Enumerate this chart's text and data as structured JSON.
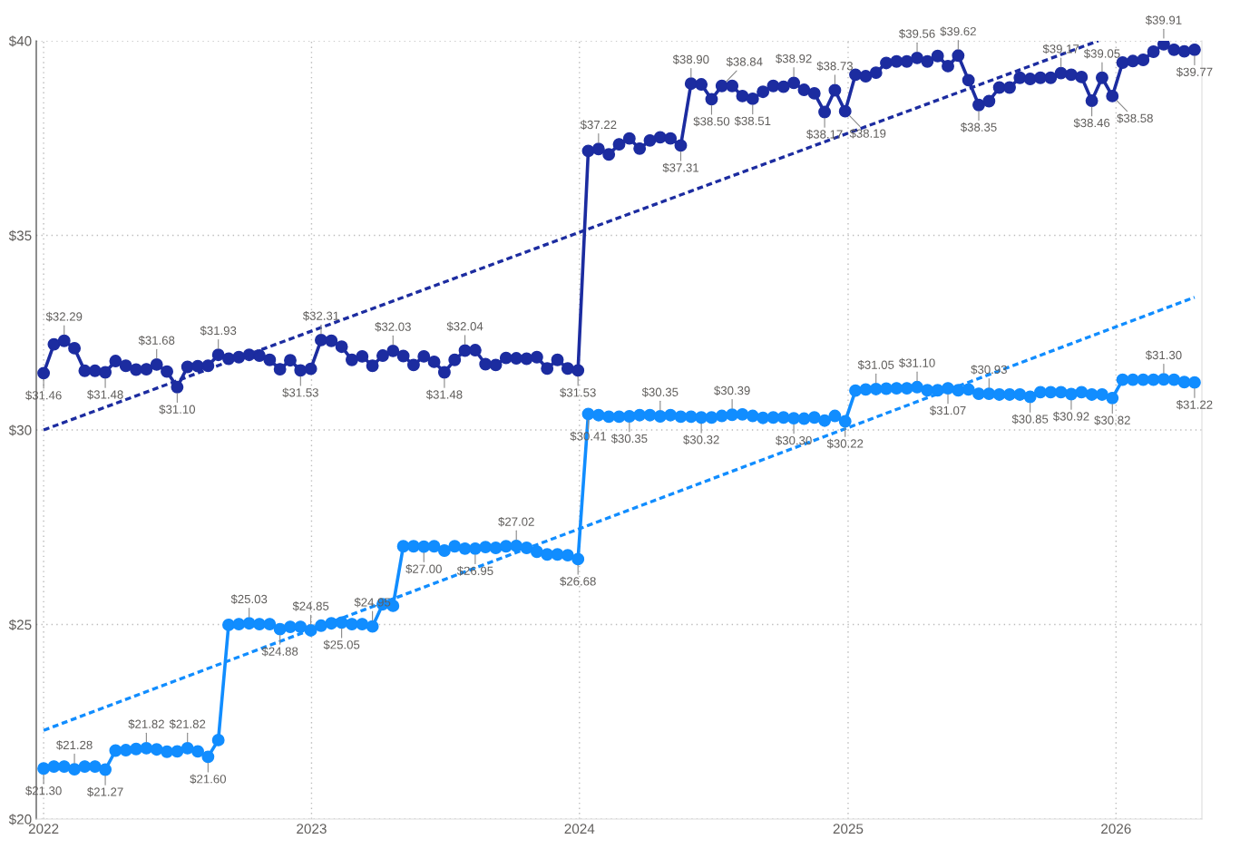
{
  "chart_data": {
    "type": "line",
    "x": [
      "2022-01-01",
      "2022-01-15",
      "2022-01-29",
      "2022-02-12",
      "2022-02-26",
      "2022-03-12",
      "2022-03-26",
      "2022-04-09",
      "2022-04-23",
      "2022-05-07",
      "2022-05-21",
      "2022-06-04",
      "2022-06-18",
      "2022-07-02",
      "2022-07-16",
      "2022-07-30",
      "2022-08-13",
      "2022-08-27",
      "2022-09-10",
      "2022-09-24",
      "2022-10-08",
      "2022-10-22",
      "2022-11-05",
      "2022-11-19",
      "2022-12-03",
      "2022-12-17",
      "2022-12-31",
      "2023-01-14",
      "2023-01-28",
      "2023-02-11",
      "2023-02-25",
      "2023-03-11",
      "2023-03-25",
      "2023-04-08",
      "2023-04-22",
      "2023-05-06",
      "2023-05-20",
      "2023-06-03",
      "2023-06-17",
      "2023-07-01",
      "2023-07-15",
      "2023-07-29",
      "2023-08-12",
      "2023-08-26",
      "2023-09-09",
      "2023-09-23",
      "2023-10-07",
      "2023-10-21",
      "2023-11-04",
      "2023-11-18",
      "2023-12-02",
      "2023-12-16",
      "2023-12-30",
      "2024-01-13",
      "2024-01-27",
      "2024-02-10",
      "2024-02-24",
      "2024-03-09",
      "2024-03-23",
      "2024-04-06",
      "2024-04-20",
      "2024-05-04",
      "2024-05-18",
      "2024-06-01",
      "2024-06-15",
      "2024-06-29",
      "2024-07-13",
      "2024-07-27",
      "2024-08-10",
      "2024-08-24",
      "2024-09-07",
      "2024-09-21",
      "2024-10-05",
      "2024-10-19",
      "2024-11-02",
      "2024-11-16",
      "2024-11-30",
      "2024-12-14",
      "2024-12-28",
      "2025-01-11",
      "2025-01-25",
      "2025-02-08",
      "2025-02-22",
      "2025-03-08",
      "2025-03-22",
      "2025-04-05",
      "2025-04-19",
      "2025-05-03",
      "2025-05-17",
      "2025-05-31",
      "2025-06-14",
      "2025-06-28",
      "2025-07-12",
      "2025-07-26",
      "2025-08-09",
      "2025-08-23",
      "2025-09-06",
      "2025-09-20",
      "2025-10-04",
      "2025-10-18",
      "2025-11-01",
      "2025-11-15",
      "2025-11-29",
      "2025-12-13",
      "2025-12-27",
      "2026-01-10",
      "2026-01-24",
      "2026-02-07",
      "2026-02-21",
      "2026-03-07",
      "2026-03-21",
      "2026-04-04",
      "2026-04-18"
    ],
    "series": [
      {
        "color": "#1c2ca0",
        "marker": "circle",
        "line_style": "solid",
        "values": [
          31.46,
          32.2,
          32.29,
          32.1,
          31.52,
          31.52,
          31.48,
          31.77,
          31.65,
          31.55,
          31.56,
          31.68,
          31.5,
          31.1,
          31.62,
          31.64,
          31.65,
          31.93,
          31.83,
          31.87,
          31.93,
          31.91,
          31.8,
          31.56,
          31.79,
          31.53,
          31.57,
          32.31,
          32.29,
          32.14,
          31.8,
          31.89,
          31.65,
          31.91,
          32.03,
          31.9,
          31.67,
          31.89,
          31.75,
          31.48,
          31.8,
          32.04,
          32.05,
          31.69,
          31.67,
          31.85,
          31.84,
          31.83,
          31.87,
          31.58,
          31.8,
          31.58,
          31.53,
          37.17,
          37.22,
          37.08,
          37.34,
          37.49,
          37.23,
          37.44,
          37.52,
          37.49,
          37.31,
          38.9,
          38.88,
          38.5,
          38.84,
          38.84,
          38.58,
          38.51,
          38.69,
          38.84,
          38.82,
          38.92,
          38.74,
          38.65,
          38.17,
          38.73,
          38.19,
          39.13,
          39.09,
          39.18,
          39.43,
          39.47,
          39.47,
          39.56,
          39.47,
          39.61,
          39.35,
          39.62,
          38.99,
          38.35,
          38.45,
          38.8,
          38.8,
          39.05,
          39.02,
          39.05,
          39.05,
          39.17,
          39.13,
          39.07,
          38.46,
          39.05,
          38.58,
          39.44,
          39.48,
          39.51,
          39.72,
          39.91,
          39.77,
          39.73,
          39.77
        ],
        "value_labels": [
          "$31.46",
          null,
          "$32.29",
          null,
          null,
          null,
          "$31.48",
          null,
          null,
          null,
          null,
          "$31.68",
          null,
          "$31.10",
          null,
          null,
          null,
          "$31.93",
          null,
          null,
          null,
          null,
          null,
          null,
          null,
          "$31.53",
          null,
          "$32.31",
          null,
          null,
          null,
          null,
          null,
          null,
          "$32.03",
          null,
          null,
          null,
          null,
          "$31.48",
          null,
          "$32.04",
          null,
          null,
          null,
          null,
          null,
          null,
          null,
          null,
          null,
          null,
          "$31.53",
          null,
          "$37.22",
          null,
          null,
          null,
          null,
          null,
          null,
          null,
          "$37.31",
          "$38.90",
          null,
          "$38.50",
          "$38.84",
          null,
          null,
          "$38.51",
          null,
          null,
          null,
          "$38.92",
          null,
          null,
          "$38.17",
          "$38.73",
          "$38.19",
          null,
          null,
          null,
          null,
          null,
          null,
          "$39.56",
          null,
          null,
          null,
          "$39.62",
          null,
          "$38.35",
          null,
          null,
          null,
          null,
          null,
          null,
          null,
          "$39.17",
          null,
          null,
          "$38.46",
          "$39.05",
          "$38.58",
          null,
          null,
          null,
          null,
          "$39.91",
          null,
          null,
          "$39.77"
        ]
      },
      {
        "color": "#118dff",
        "marker": "circle",
        "line_style": "solid",
        "values": [
          21.3,
          21.35,
          21.35,
          21.28,
          21.35,
          21.35,
          21.27,
          21.76,
          21.77,
          21.8,
          21.82,
          21.79,
          21.73,
          21.74,
          21.82,
          21.74,
          21.6,
          22.03,
          24.99,
          25.01,
          25.03,
          25.01,
          25.01,
          24.88,
          24.94,
          24.94,
          24.85,
          24.97,
          25.03,
          25.05,
          25.01,
          25.01,
          24.95,
          25.52,
          25.48,
          27.01,
          27.01,
          27.0,
          27.01,
          26.9,
          27.01,
          26.95,
          26.95,
          26.99,
          26.97,
          27.01,
          27.02,
          26.97,
          26.87,
          26.8,
          26.8,
          26.78,
          26.68,
          30.41,
          30.38,
          30.34,
          30.34,
          30.35,
          30.38,
          30.38,
          30.35,
          30.38,
          30.34,
          30.34,
          30.32,
          30.32,
          30.36,
          30.39,
          30.4,
          30.36,
          30.31,
          30.32,
          30.32,
          30.3,
          30.29,
          30.32,
          30.24,
          30.36,
          30.22,
          31.01,
          31.04,
          31.05,
          31.06,
          31.07,
          31.07,
          31.1,
          31.02,
          31.02,
          31.07,
          31.02,
          31.04,
          30.93,
          30.93,
          30.91,
          30.91,
          30.91,
          30.85,
          30.97,
          30.97,
          30.97,
          30.92,
          30.97,
          30.91,
          30.91,
          30.82,
          31.29,
          31.29,
          31.29,
          31.29,
          31.3,
          31.29,
          31.23,
          31.22
        ],
        "value_labels": [
          "$21.30",
          null,
          null,
          "$21.28",
          null,
          null,
          "$21.27",
          null,
          null,
          null,
          "$21.82",
          null,
          null,
          null,
          "$21.82",
          null,
          "$21.60",
          null,
          null,
          null,
          "$25.03",
          null,
          null,
          "$24.88",
          null,
          null,
          "$24.85",
          null,
          null,
          "$25.05",
          null,
          null,
          "$24.95",
          null,
          null,
          null,
          null,
          "$27.00",
          null,
          null,
          null,
          null,
          "$26.95",
          null,
          null,
          null,
          "$27.02",
          null,
          null,
          null,
          null,
          null,
          "$26.68",
          "$30.41",
          null,
          null,
          null,
          "$30.35",
          null,
          null,
          "$30.35",
          null,
          null,
          null,
          "$30.32",
          null,
          null,
          "$30.39",
          null,
          null,
          null,
          null,
          null,
          "$30.30",
          null,
          null,
          null,
          null,
          "$30.22",
          null,
          null,
          "$31.05",
          null,
          null,
          null,
          "$31.10",
          null,
          null,
          "$31.07",
          null,
          null,
          null,
          "$30.93",
          null,
          null,
          null,
          "$30.85",
          null,
          null,
          null,
          "$30.92",
          null,
          null,
          null,
          "$30.82",
          null,
          null,
          null,
          null,
          "$31.30",
          null,
          null,
          "$31.22"
        ]
      },
      {
        "type": "line",
        "color": "#1c2ca0",
        "marker": "none",
        "line_style": "dotted",
        "x": [
          "2022-01-01",
          "2025-12-08"
        ],
        "values": [
          30.0,
          40.0
        ]
      },
      {
        "type": "line",
        "color": "#118dff",
        "marker": "none",
        "line_style": "dotted",
        "x": [
          "2022-01-01",
          "2026-04-18"
        ],
        "values": [
          22.28,
          33.41
        ]
      }
    ],
    "xlim": [
      "2021-12-22",
      "2026-04-28"
    ],
    "xticks": [
      {
        "value": "2022-01-01",
        "label": "2022"
      },
      {
        "value": "2023-01-01",
        "label": "2023"
      },
      {
        "value": "2024-01-01",
        "label": "2024"
      },
      {
        "value": "2025-01-01",
        "label": "2025"
      },
      {
        "value": "2026-01-01",
        "label": "2026"
      }
    ],
    "ylim": [
      20,
      40
    ],
    "yticks": [
      {
        "value": 20,
        "label": "$20"
      },
      {
        "value": 25,
        "label": "$25"
      },
      {
        "value": 30,
        "label": "$30"
      },
      {
        "value": 35,
        "label": "$35"
      },
      {
        "value": 40,
        "label": "$40"
      }
    ],
    "grid": true
  }
}
